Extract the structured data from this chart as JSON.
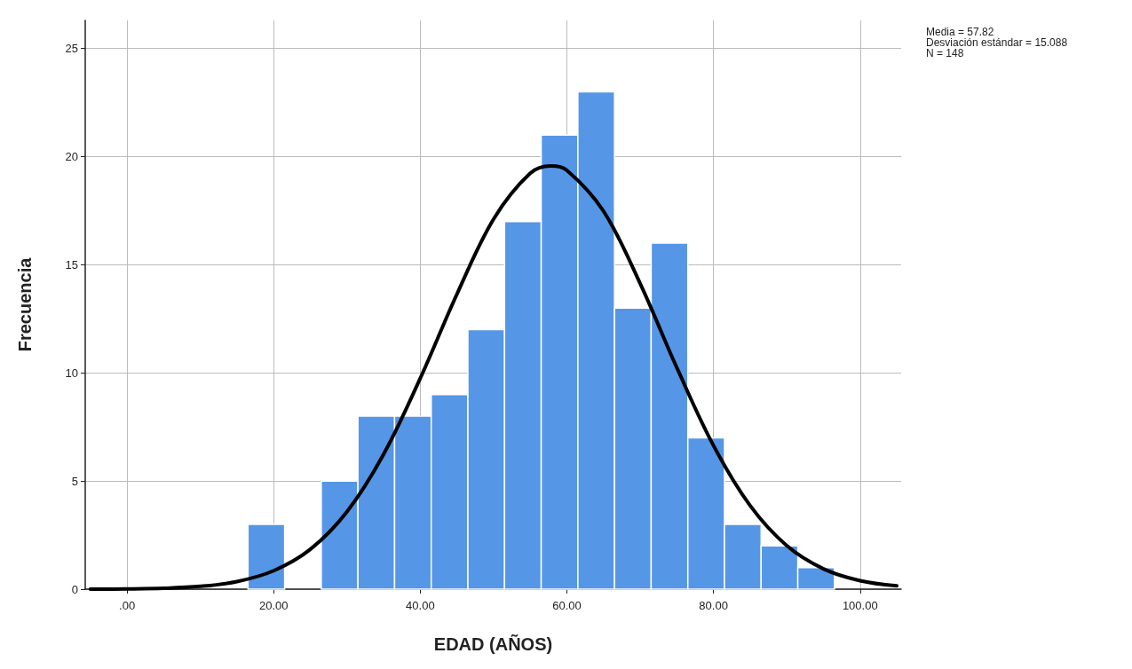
{
  "chart_data": {
    "type": "histogram",
    "xlabel": "EDAD (AÑOS)",
    "ylabel": "Frecuencia",
    "bins": [
      16.5,
      21.5,
      26.5,
      31.5,
      36.5,
      41.5,
      46.5,
      51.5,
      56.5,
      61.5,
      66.5,
      71.5,
      76.5,
      81.5,
      86.5,
      91.5,
      96.5
    ],
    "values": [
      3,
      0,
      5,
      8,
      8,
      9,
      12,
      17,
      21,
      23,
      13,
      16,
      7,
      3,
      2,
      1
    ],
    "color": "#5596e6",
    "series": [
      {
        "type": "line",
        "color": "#000000",
        "marker": "none",
        "line_style": "solid",
        "x": [
          -5,
          0,
          5,
          10,
          15,
          20,
          25,
          30,
          35,
          40,
          45,
          50,
          55,
          57.82,
          60,
          65,
          70,
          75,
          80,
          85,
          90,
          95,
          100,
          105
        ],
        "values": [
          0.0,
          0.01,
          0.04,
          0.13,
          0.35,
          0.85,
          1.84,
          3.58,
          6.24,
          9.75,
          13.64,
          17.11,
          19.23,
          19.57,
          19.37,
          17.48,
          14.13,
          10.24,
          6.64,
          3.86,
          2.01,
          0.94,
          0.39,
          0.15
        ]
      }
    ],
    "xlim": [
      -5.7,
      105.6
    ],
    "xticks": [
      {
        "value": 0,
        "label": ".00"
      },
      {
        "value": 20,
        "label": "20.00"
      },
      {
        "value": 40,
        "label": "40.00"
      },
      {
        "value": 60,
        "label": "60.00"
      },
      {
        "value": 80,
        "label": "80.00"
      },
      {
        "value": 100,
        "label": "100.00"
      }
    ],
    "ylim": [
      0,
      26.3
    ],
    "yticks": [
      0,
      5,
      10,
      15,
      20,
      25
    ],
    "grid": true,
    "annotations": [
      "Media = 57.82",
      "Desviación estándar = 15.088",
      "N = 148"
    ]
  }
}
